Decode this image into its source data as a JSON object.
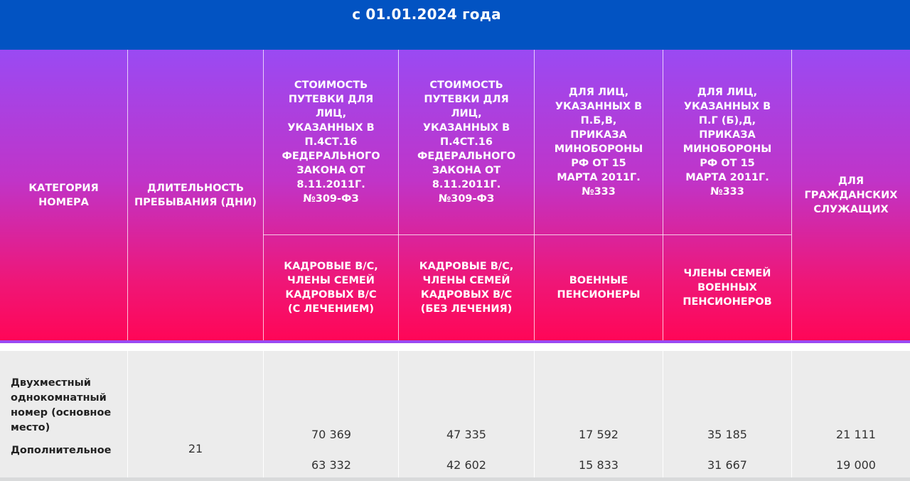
{
  "page_title": "с 01.01.2024 года",
  "header": {
    "col_category": "КАТЕГОРИЯ НОМЕРА",
    "col_duration": "ДЛИТЕЛЬНОСТЬ ПРЕБЫВАНИЯ (ДНИ)",
    "col_cost_1": "СТОИМОСТЬ ПУТЕВКИ ДЛЯ ЛИЦ, УКАЗАННЫХ В П.4СТ.16 ФЕДЕРАЛЬНОГО ЗАКОНА ОТ 8.11.2011Г. №309-ФЗ",
    "col_cost_2": "СТОИМОСТЬ ПУТЕВКИ ДЛЯ ЛИЦ, УКАЗАННЫХ В П.4СТ.16 ФЕДЕРАЛЬНОГО ЗАКОНА ОТ 8.11.2011Г. №309-ФЗ",
    "col_mod_1": "ДЛЯ ЛИЦ, УКАЗАННЫХ В П.Б,В, ПРИКАЗА МИНОБОРОНЫ РФ ОТ 15 МАРТА 2011Г. №333",
    "col_mod_2": "ДЛЯ ЛИЦ, УКАЗАННЫХ В П.Г (Б),Д, ПРИКАЗА МИНОБОРОНЫ РФ ОТ 15 МАРТА 2011Г. №333",
    "col_civil": "ДЛЯ ГРАЖДАНСКИХ СЛУЖАЩИХ",
    "sub_1": "КАДРОВЫЕ В/С, ЧЛЕНЫ СЕМЕЙ КАДРОВЫХ В/С (С ЛЕЧЕНИЕМ)",
    "sub_2": "КАДРОВЫЕ В/С, ЧЛЕНЫ СЕМЕЙ КАДРОВЫХ В/С (БЕЗ ЛЕЧЕНИЯ)",
    "sub_3": "ВОЕННЫЕ ПЕНСИОНЕРЫ",
    "sub_4": "ЧЛЕНЫ СЕМЕЙ ВОЕННЫХ ПЕНСИОНЕРОВ"
  },
  "row": {
    "category_main": "Двухместный однокомнатный номер (основное место)",
    "category_extra": "Дополнительное",
    "duration": "21",
    "main_values": [
      "70 369",
      "47 335",
      "17 592",
      "35 185",
      "21 111"
    ],
    "extra_values": [
      "63 332",
      "42 602",
      "15 833",
      "31 667",
      "19 000"
    ]
  }
}
